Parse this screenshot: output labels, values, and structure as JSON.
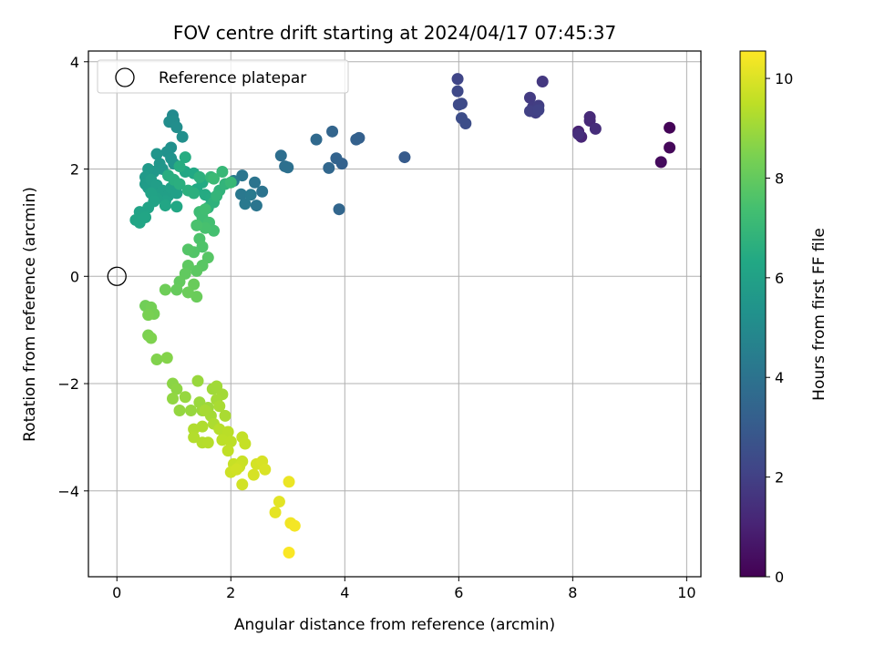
{
  "chart_data": {
    "type": "scatter",
    "title": "FOV centre drift starting at 2024/04/17 07:45:37",
    "xlabel": "Angular distance from reference (arcmin)",
    "ylabel": "Rotation from reference (arcmin)",
    "xlim": [
      -0.5,
      10.25
    ],
    "ylim": [
      -5.6,
      4.2
    ],
    "xticks": [
      0,
      2,
      4,
      6,
      8,
      10
    ],
    "yticks": [
      -4,
      -2,
      0,
      2,
      4
    ],
    "grid": true,
    "legend": {
      "placement": "upper-left",
      "entries": [
        "Reference platepar"
      ]
    },
    "reference_point": {
      "x": 0,
      "y": 0,
      "label": "Reference platepar"
    },
    "colorbar": {
      "label": "Hours from first FF file",
      "colormap": "viridis",
      "range": [
        0,
        10.55
      ],
      "ticks": [
        0,
        2,
        4,
        6,
        8,
        10
      ]
    },
    "points": [
      [
        9.7,
        2.77,
        0.1
      ],
      [
        9.7,
        2.4,
        0.2
      ],
      [
        9.55,
        2.13,
        0.3
      ],
      [
        8.1,
        2.7,
        1.0
      ],
      [
        8.15,
        2.6,
        1.1
      ],
      [
        8.3,
        2.9,
        1.2
      ],
      [
        8.3,
        2.97,
        1.25
      ],
      [
        8.4,
        2.75,
        1.35
      ],
      [
        8.1,
        2.65,
        1.4
      ],
      [
        7.47,
        3.63,
        1.7
      ],
      [
        7.25,
        3.33,
        1.8
      ],
      [
        7.3,
        3.15,
        1.85
      ],
      [
        7.4,
        3.18,
        1.9
      ],
      [
        7.35,
        3.05,
        1.95
      ],
      [
        7.25,
        3.08,
        2.0
      ],
      [
        7.4,
        3.1,
        2.05
      ],
      [
        5.98,
        3.68,
        2.2
      ],
      [
        5.98,
        3.45,
        2.3
      ],
      [
        6.05,
        3.22,
        2.35
      ],
      [
        6.0,
        3.2,
        2.4
      ],
      [
        6.05,
        2.95,
        2.45
      ],
      [
        6.12,
        2.85,
        2.5
      ],
      [
        5.05,
        2.22,
        3.0
      ],
      [
        4.25,
        2.58,
        3.2
      ],
      [
        4.2,
        2.55,
        3.25
      ],
      [
        3.95,
        2.1,
        3.3
      ],
      [
        3.85,
        2.2,
        3.35
      ],
      [
        3.78,
        2.7,
        3.4
      ],
      [
        3.9,
        1.25,
        3.45
      ],
      [
        3.72,
        2.02,
        3.5
      ],
      [
        3.5,
        2.55,
        3.6
      ],
      [
        2.88,
        2.25,
        3.8
      ],
      [
        2.95,
        2.05,
        3.85
      ],
      [
        3.0,
        2.03,
        3.9
      ],
      [
        2.55,
        1.58,
        4.0
      ],
      [
        2.42,
        1.75,
        4.05
      ],
      [
        2.45,
        1.32,
        4.1
      ],
      [
        2.2,
        1.88,
        4.15
      ],
      [
        2.18,
        1.53,
        4.2
      ],
      [
        2.25,
        1.35,
        4.25
      ],
      [
        2.35,
        1.52,
        4.3
      ],
      [
        2.05,
        1.78,
        4.35
      ],
      [
        0.98,
        3.0,
        5.0
      ],
      [
        1.0,
        2.9,
        5.05
      ],
      [
        0.92,
        2.88,
        5.1
      ],
      [
        1.05,
        2.78,
        5.15
      ],
      [
        1.15,
        2.6,
        5.2
      ],
      [
        0.95,
        2.4,
        5.25
      ],
      [
        0.88,
        2.32,
        5.3
      ],
      [
        0.95,
        2.2,
        5.35
      ],
      [
        1.0,
        2.1,
        5.4
      ],
      [
        0.7,
        2.28,
        5.45
      ],
      [
        0.75,
        2.1,
        5.5
      ],
      [
        0.8,
        2.0,
        5.55
      ],
      [
        0.65,
        1.95,
        5.6
      ],
      [
        0.55,
        2.0,
        5.65
      ],
      [
        0.5,
        1.85,
        5.7
      ],
      [
        0.5,
        1.72,
        5.75
      ],
      [
        0.55,
        1.65,
        5.8
      ],
      [
        0.6,
        1.8,
        5.82
      ],
      [
        0.7,
        1.7,
        5.85
      ],
      [
        0.75,
        1.55,
        5.88
      ],
      [
        0.8,
        1.6,
        5.9
      ],
      [
        0.9,
        1.5,
        5.93
      ],
      [
        0.95,
        1.65,
        5.95
      ],
      [
        1.05,
        1.55,
        5.98
      ],
      [
        0.85,
        1.4,
        6.0
      ],
      [
        0.7,
        1.45,
        6.02
      ],
      [
        0.6,
        1.55,
        6.05
      ],
      [
        0.65,
        1.4,
        6.08
      ],
      [
        0.55,
        1.28,
        6.1
      ],
      [
        0.4,
        1.2,
        6.12
      ],
      [
        0.33,
        1.05,
        6.15
      ],
      [
        0.4,
        1.0,
        6.18
      ],
      [
        0.5,
        1.1,
        6.2
      ],
      [
        0.85,
        1.32,
        6.25
      ],
      [
        1.05,
        1.3,
        6.28
      ],
      [
        1.2,
        1.95,
        6.3
      ],
      [
        1.35,
        1.92,
        6.33
      ],
      [
        1.4,
        1.62,
        6.36
      ],
      [
        1.5,
        1.75,
        6.4
      ],
      [
        1.55,
        1.52,
        6.43
      ],
      [
        1.65,
        1.45,
        6.46
      ],
      [
        1.2,
        2.22,
        6.5
      ],
      [
        1.1,
        2.05,
        6.52
      ],
      [
        0.9,
        1.88,
        6.55
      ],
      [
        1.0,
        1.8,
        6.58
      ],
      [
        1.1,
        1.72,
        6.6
      ],
      [
        1.25,
        1.6,
        6.63
      ],
      [
        1.35,
        1.55,
        6.66
      ],
      [
        1.45,
        1.85,
        6.7
      ],
      [
        1.6,
        1.28,
        6.72
      ],
      [
        1.7,
        1.38,
        6.75
      ],
      [
        1.8,
        1.6,
        6.8
      ],
      [
        1.9,
        1.72,
        6.85
      ],
      [
        1.75,
        1.5,
        6.9
      ],
      [
        1.65,
        1.85,
        6.95
      ],
      [
        1.85,
        1.95,
        7.0
      ],
      [
        2.0,
        1.75,
        7.05
      ],
      [
        1.7,
        1.82,
        7.1
      ],
      [
        1.45,
        1.2,
        7.2
      ],
      [
        1.5,
        1.1,
        7.25
      ],
      [
        1.55,
        1.25,
        7.3
      ],
      [
        1.62,
        1.0,
        7.35
      ],
      [
        1.7,
        0.85,
        7.4
      ],
      [
        1.55,
        0.9,
        7.45
      ],
      [
        1.4,
        0.95,
        7.5
      ],
      [
        1.45,
        0.7,
        7.55
      ],
      [
        1.5,
        0.55,
        7.6
      ],
      [
        1.35,
        0.45,
        7.65
      ],
      [
        1.25,
        0.5,
        7.7
      ],
      [
        1.6,
        0.35,
        7.75
      ],
      [
        1.5,
        0.2,
        7.8
      ],
      [
        1.4,
        0.1,
        7.85
      ],
      [
        1.25,
        0.2,
        7.9
      ],
      [
        1.2,
        0.05,
        7.95
      ],
      [
        1.1,
        -0.1,
        8.0
      ],
      [
        1.05,
        -0.25,
        8.05
      ],
      [
        1.35,
        -0.15,
        8.1
      ],
      [
        1.4,
        -0.38,
        8.12
      ],
      [
        1.25,
        -0.3,
        8.15
      ],
      [
        0.85,
        -0.25,
        8.2
      ],
      [
        0.5,
        -0.55,
        8.25
      ],
      [
        0.6,
        -0.58,
        8.3
      ],
      [
        0.65,
        -0.7,
        8.35
      ],
      [
        0.55,
        -0.72,
        8.4
      ],
      [
        0.55,
        -1.1,
        8.45
      ],
      [
        0.6,
        -1.15,
        8.5
      ],
      [
        0.7,
        -1.55,
        8.55
      ],
      [
        0.88,
        -1.52,
        8.6
      ],
      [
        0.98,
        -2.0,
        8.7
      ],
      [
        1.05,
        -2.1,
        8.75
      ],
      [
        0.98,
        -2.28,
        8.8
      ],
      [
        1.1,
        -2.5,
        8.85
      ],
      [
        1.2,
        -2.25,
        8.88
      ],
      [
        1.3,
        -2.5,
        8.9
      ],
      [
        1.42,
        -1.95,
        8.92
      ],
      [
        1.45,
        -2.35,
        8.95
      ],
      [
        1.5,
        -2.5,
        8.97
      ],
      [
        1.6,
        -2.45,
        9.0
      ],
      [
        1.68,
        -2.1,
        9.03
      ],
      [
        1.75,
        -2.05,
        9.05
      ],
      [
        1.85,
        -2.2,
        9.08
      ],
      [
        1.75,
        -2.3,
        9.1
      ],
      [
        1.65,
        -2.6,
        9.12
      ],
      [
        1.55,
        -2.5,
        9.15
      ],
      [
        1.8,
        -2.42,
        9.18
      ],
      [
        1.9,
        -2.6,
        9.2
      ],
      [
        1.7,
        -2.75,
        9.25
      ],
      [
        1.5,
        -2.8,
        9.28
      ],
      [
        1.35,
        -2.85,
        9.3
      ],
      [
        1.35,
        -3.0,
        9.33
      ],
      [
        1.5,
        -3.1,
        9.35
      ],
      [
        1.6,
        -3.1,
        9.38
      ],
      [
        1.8,
        -2.85,
        9.4
      ],
      [
        1.95,
        -2.9,
        9.45
      ],
      [
        1.85,
        -3.05,
        9.48
      ],
      [
        2.0,
        -3.08,
        9.5
      ],
      [
        1.95,
        -3.25,
        9.55
      ],
      [
        2.2,
        -3.0,
        9.6
      ],
      [
        2.25,
        -3.12,
        9.63
      ],
      [
        2.05,
        -3.5,
        9.66
      ],
      [
        2.2,
        -3.45,
        9.7
      ],
      [
        2.15,
        -3.55,
        9.73
      ],
      [
        2.0,
        -3.65,
        9.76
      ],
      [
        2.1,
        -3.6,
        9.8
      ],
      [
        2.2,
        -3.88,
        9.83
      ],
      [
        2.45,
        -3.5,
        9.87
      ],
      [
        2.4,
        -3.7,
        9.9
      ],
      [
        2.55,
        -3.45,
        9.93
      ],
      [
        2.6,
        -3.6,
        9.96
      ],
      [
        2.85,
        -4.2,
        10.1
      ],
      [
        2.78,
        -4.4,
        10.15
      ],
      [
        3.02,
        -3.83,
        10.25
      ],
      [
        3.05,
        -4.6,
        10.35
      ],
      [
        3.12,
        -4.65,
        10.4
      ],
      [
        3.02,
        -5.15,
        10.5
      ]
    ]
  }
}
